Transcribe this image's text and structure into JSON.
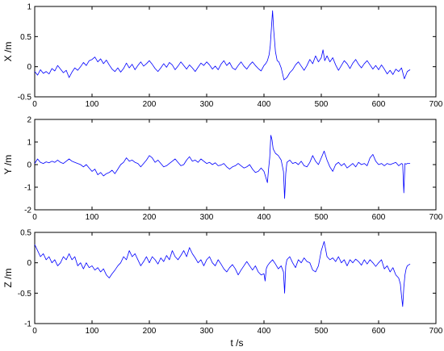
{
  "chart_data": [
    {
      "type": "line",
      "ylabel": "X /m",
      "xlabel": "",
      "xlim": [
        0,
        700
      ],
      "ylim": [
        -0.5,
        1
      ],
      "xticks": [
        "0",
        "100",
        "200",
        "300",
        "400",
        "500",
        "600",
        "700"
      ],
      "yticks": [
        "-0.5",
        "0",
        "0.5",
        "1"
      ],
      "series": [
        {
          "color": "#0000ff",
          "x": [
            0,
            5,
            10,
            15,
            20,
            25,
            30,
            35,
            40,
            45,
            50,
            55,
            60,
            65,
            70,
            75,
            80,
            85,
            90,
            95,
            100,
            105,
            110,
            115,
            120,
            125,
            130,
            135,
            140,
            145,
            150,
            155,
            160,
            165,
            170,
            175,
            180,
            185,
            190,
            195,
            200,
            205,
            210,
            215,
            220,
            225,
            230,
            235,
            240,
            245,
            250,
            255,
            260,
            265,
            270,
            275,
            280,
            285,
            290,
            295,
            300,
            305,
            310,
            315,
            320,
            325,
            330,
            335,
            340,
            345,
            350,
            355,
            360,
            365,
            370,
            375,
            380,
            385,
            390,
            395,
            400,
            403,
            406,
            409,
            411,
            413,
            415,
            417,
            420,
            423,
            426,
            430,
            435,
            440,
            445,
            450,
            455,
            460,
            465,
            470,
            475,
            480,
            485,
            490,
            495,
            500,
            503,
            506,
            510,
            515,
            520,
            525,
            530,
            535,
            540,
            545,
            550,
            555,
            560,
            565,
            570,
            575,
            580,
            585,
            590,
            595,
            600,
            605,
            610,
            615,
            620,
            625,
            630,
            635,
            640,
            645,
            650,
            655
          ],
          "y": [
            -0.08,
            -0.14,
            -0.05,
            -0.11,
            -0.08,
            -0.12,
            -0.03,
            -0.07,
            0.02,
            -0.04,
            -0.1,
            -0.06,
            -0.18,
            -0.09,
            -0.02,
            -0.06,
            0.0,
            0.07,
            0.02,
            0.1,
            0.12,
            0.16,
            0.08,
            0.13,
            0.05,
            0.11,
            0.03,
            -0.04,
            -0.08,
            -0.02,
            -0.09,
            -0.03,
            0.06,
            -0.02,
            0.04,
            -0.05,
            0.02,
            0.08,
            0.01,
            0.05,
            0.1,
            0.04,
            -0.03,
            -0.08,
            -0.02,
            0.05,
            -0.01,
            0.07,
            0.03,
            -0.05,
            0.01,
            0.08,
            0.02,
            -0.04,
            0.03,
            -0.02,
            -0.08,
            -0.01,
            0.06,
            0.02,
            0.08,
            0.03,
            -0.04,
            0.01,
            -0.05,
            0.04,
            0.1,
            0.02,
            0.07,
            -0.02,
            -0.05,
            0.02,
            0.08,
            0.01,
            -0.04,
            0.03,
            0.08,
            0.02,
            -0.03,
            -0.07,
            0.02,
            0.05,
            0.1,
            0.2,
            0.35,
            0.65,
            0.93,
            0.6,
            0.25,
            0.1,
            0.08,
            -0.02,
            -0.22,
            -0.18,
            -0.1,
            -0.05,
            0.03,
            0.08,
            0.01,
            -0.06,
            0.02,
            0.12,
            0.05,
            0.18,
            0.08,
            0.15,
            0.28,
            0.1,
            0.18,
            0.08,
            0.15,
            0.03,
            -0.06,
            0.02,
            0.1,
            0.05,
            -0.03,
            0.06,
            0.12,
            0.04,
            -0.02,
            0.05,
            0.1,
            0.03,
            -0.04,
            0.02,
            -0.05,
            0.03,
            -0.04,
            -0.12,
            -0.06,
            -0.13,
            -0.04,
            -0.08,
            -0.02,
            -0.2,
            -0.08,
            -0.05
          ]
        }
      ]
    },
    {
      "type": "line",
      "ylabel": "Y /m",
      "xlabel": "",
      "xlim": [
        0,
        700
      ],
      "ylim": [
        -2,
        2
      ],
      "xticks": [
        "0",
        "100",
        "200",
        "300",
        "400",
        "500",
        "600",
        "700"
      ],
      "yticks": [
        "-2",
        "-1",
        "0",
        "1",
        "2"
      ],
      "series": [
        {
          "color": "#0000ff",
          "x": [
            0,
            5,
            10,
            15,
            20,
            25,
            30,
            35,
            40,
            45,
            50,
            55,
            60,
            65,
            70,
            75,
            80,
            85,
            90,
            95,
            100,
            105,
            110,
            115,
            120,
            125,
            130,
            135,
            140,
            145,
            150,
            155,
            160,
            165,
            170,
            175,
            180,
            185,
            190,
            195,
            200,
            205,
            210,
            215,
            220,
            225,
            230,
            235,
            240,
            245,
            250,
            255,
            260,
            265,
            270,
            275,
            280,
            285,
            290,
            295,
            300,
            305,
            310,
            315,
            320,
            325,
            330,
            335,
            340,
            345,
            350,
            355,
            360,
            365,
            370,
            375,
            380,
            385,
            390,
            395,
            400,
            403,
            406,
            408,
            410,
            412,
            414,
            416,
            420,
            425,
            430,
            434,
            436,
            438,
            440,
            445,
            450,
            455,
            460,
            465,
            470,
            475,
            480,
            485,
            490,
            495,
            500,
            505,
            510,
            515,
            520,
            525,
            530,
            535,
            540,
            545,
            550,
            555,
            560,
            565,
            570,
            575,
            580,
            585,
            590,
            595,
            600,
            605,
            610,
            615,
            620,
            625,
            630,
            635,
            640,
            642,
            644,
            646,
            648,
            650,
            655
          ],
          "y": [
            0.05,
            0.25,
            0.1,
            0.05,
            0.12,
            0.08,
            0.15,
            0.1,
            0.2,
            0.1,
            0.05,
            0.15,
            0.25,
            0.15,
            0.1,
            0.05,
            0.0,
            -0.1,
            0.0,
            -0.15,
            -0.3,
            -0.2,
            -0.45,
            -0.35,
            -0.5,
            -0.4,
            -0.35,
            -0.25,
            -0.4,
            -0.2,
            0.0,
            0.1,
            0.3,
            0.15,
            0.2,
            0.1,
            0.05,
            -0.1,
            0.05,
            0.2,
            0.4,
            0.3,
            0.1,
            0.2,
            0.05,
            -0.1,
            -0.05,
            0.05,
            0.15,
            0.25,
            0.1,
            -0.05,
            0.0,
            0.2,
            0.35,
            0.15,
            0.2,
            0.1,
            0.25,
            0.15,
            0.05,
            0.1,
            0.0,
            0.08,
            -0.05,
            -0.02,
            0.05,
            -0.1,
            -0.2,
            -0.1,
            -0.05,
            0.05,
            -0.05,
            -0.15,
            -0.1,
            0.0,
            -0.2,
            -0.35,
            -0.3,
            -0.15,
            -0.3,
            -0.55,
            -0.8,
            -0.2,
            0.3,
            1.3,
            1.1,
            0.7,
            0.5,
            0.4,
            0.2,
            -0.3,
            -1.5,
            -0.4,
            0.1,
            0.2,
            0.05,
            0.1,
            0.0,
            0.15,
            -0.05,
            -0.1,
            0.1,
            0.4,
            0.15,
            0.0,
            0.3,
            0.6,
            0.2,
            -0.1,
            -0.3,
            0.0,
            0.1,
            -0.05,
            0.05,
            -0.15,
            -0.05,
            0.05,
            -0.1,
            0.1,
            0.0,
            0.05,
            -0.05,
            0.3,
            0.45,
            0.15,
            0.0,
            0.05,
            -0.05,
            0.05,
            0.0,
            0.05,
            0.1,
            -0.05,
            0.05,
            0.02,
            -1.25,
            0.05,
            0.02,
            0.05,
            0.05
          ]
        }
      ]
    },
    {
      "type": "line",
      "ylabel": "Z /m",
      "xlabel": "t /s",
      "xlim": [
        0,
        700
      ],
      "ylim": [
        -1,
        0.5
      ],
      "xticks": [
        "0",
        "100",
        "200",
        "300",
        "400",
        "500",
        "600",
        "700"
      ],
      "yticks": [
        "-1",
        "-0.5",
        "0",
        "0.5"
      ],
      "series": [
        {
          "color": "#0000ff",
          "x": [
            0,
            5,
            10,
            15,
            20,
            25,
            30,
            35,
            40,
            45,
            50,
            55,
            60,
            65,
            70,
            75,
            80,
            85,
            90,
            95,
            100,
            105,
            110,
            115,
            120,
            125,
            130,
            135,
            140,
            145,
            150,
            155,
            160,
            165,
            170,
            175,
            180,
            185,
            190,
            195,
            200,
            205,
            210,
            215,
            220,
            225,
            230,
            235,
            240,
            245,
            250,
            255,
            260,
            265,
            270,
            275,
            280,
            285,
            290,
            295,
            300,
            305,
            310,
            315,
            320,
            325,
            330,
            335,
            340,
            345,
            350,
            355,
            360,
            365,
            370,
            375,
            380,
            385,
            390,
            395,
            400,
            402,
            404,
            406,
            410,
            415,
            420,
            425,
            430,
            434,
            436,
            438,
            440,
            445,
            450,
            455,
            460,
            465,
            470,
            475,
            480,
            485,
            490,
            495,
            500,
            505,
            510,
            515,
            520,
            525,
            530,
            535,
            540,
            545,
            550,
            555,
            560,
            565,
            570,
            575,
            580,
            585,
            590,
            595,
            600,
            605,
            610,
            615,
            620,
            625,
            630,
            635,
            638,
            640,
            642,
            644,
            646,
            648,
            650,
            655
          ],
          "y": [
            0.3,
            0.2,
            0.1,
            0.15,
            0.05,
            0.1,
            0.0,
            0.05,
            -0.05,
            0.0,
            0.1,
            0.05,
            0.15,
            0.05,
            0.1,
            -0.05,
            0.0,
            -0.1,
            0.0,
            -0.08,
            -0.05,
            -0.12,
            -0.08,
            -0.15,
            -0.1,
            -0.2,
            -0.25,
            -0.18,
            -0.12,
            -0.05,
            0.0,
            0.1,
            0.05,
            0.2,
            0.1,
            0.15,
            0.05,
            -0.05,
            0.02,
            0.1,
            0.0,
            0.1,
            0.05,
            -0.02,
            0.08,
            0.02,
            0.12,
            0.05,
            0.2,
            0.1,
            0.05,
            0.12,
            0.2,
            0.1,
            0.25,
            0.15,
            0.08,
            0.0,
            0.05,
            -0.05,
            0.05,
            0.1,
            0.0,
            -0.05,
            0.05,
            -0.02,
            -0.1,
            -0.15,
            -0.08,
            -0.03,
            -0.1,
            -0.2,
            -0.12,
            -0.05,
            0.02,
            -0.05,
            -0.12,
            -0.05,
            -0.15,
            -0.2,
            -0.18,
            -0.3,
            -0.1,
            -0.05,
            0.0,
            0.05,
            -0.02,
            -0.1,
            -0.05,
            -0.15,
            -0.5,
            -0.05,
            0.05,
            0.1,
            0.0,
            -0.08,
            0.05,
            0.0,
            0.08,
            0.02,
            0.0,
            -0.12,
            -0.15,
            -0.05,
            0.2,
            0.35,
            0.1,
            0.05,
            0.08,
            0.02,
            0.1,
            0.0,
            0.05,
            -0.05,
            0.05,
            0.0,
            0.06,
            0.02,
            -0.04,
            0.05,
            -0.02,
            0.05,
            0.0,
            -0.06,
            0.0,
            0.05,
            -0.1,
            -0.05,
            -0.15,
            -0.08,
            -0.2,
            -0.25,
            -0.35,
            -0.55,
            -0.72,
            -0.4,
            -0.2,
            -0.1,
            -0.05,
            -0.02
          ]
        }
      ]
    }
  ]
}
